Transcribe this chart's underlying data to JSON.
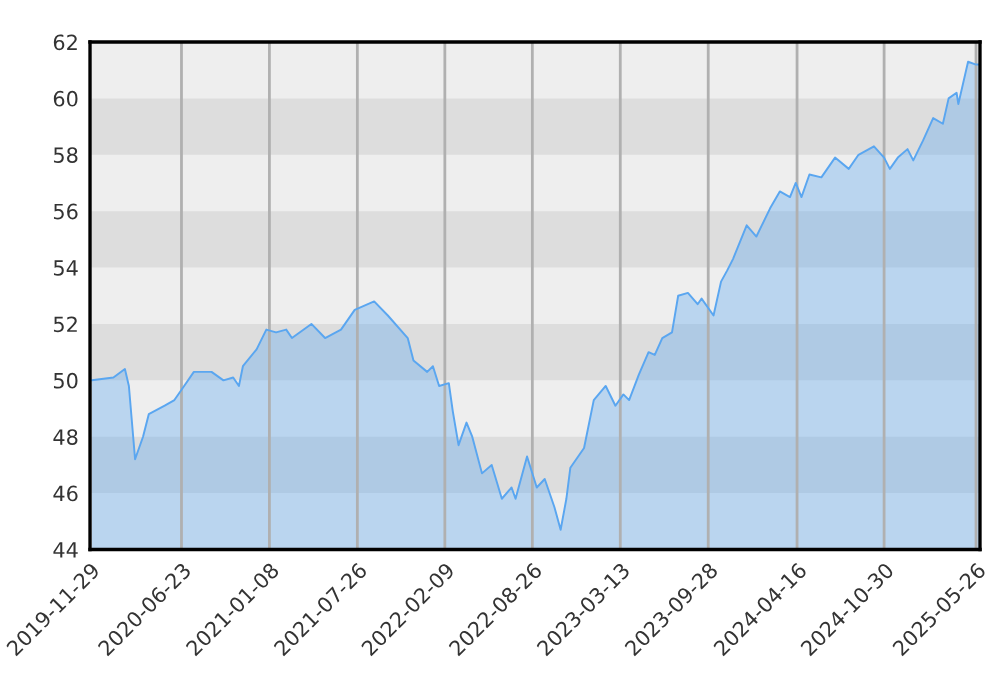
{
  "chart_data": {
    "type": "area",
    "x": [
      "2019-12-03",
      "2020-01-21",
      "2020-02-16",
      "2020-02-25",
      "2020-03-10",
      "2020-03-28",
      "2020-04-10",
      "2020-05-16",
      "2020-06-07",
      "2020-06-29",
      "2020-07-21",
      "2020-08-30",
      "2020-09-26",
      "2020-10-18",
      "2020-10-31",
      "2020-11-09",
      "2020-12-10",
      "2021-01-01",
      "2021-01-23",
      "2021-02-15",
      "2021-02-28",
      "2021-04-13",
      "2021-05-14",
      "2021-06-19",
      "2021-07-20",
      "2021-09-02",
      "2021-10-03",
      "2021-11-17",
      "2021-11-30",
      "2021-12-31",
      "2022-01-13",
      "2022-01-27",
      "2022-02-18",
      "2022-02-27",
      "2022-03-12",
      "2022-03-30",
      "2022-04-12",
      "2022-05-04",
      "2022-05-26",
      "2022-06-18",
      "2022-07-10",
      "2022-07-19",
      "2022-08-14",
      "2022-09-05",
      "2022-09-23",
      "2022-10-15",
      "2022-10-29",
      "2022-11-11",
      "2022-11-20",
      "2022-12-21",
      "2023-01-12",
      "2023-02-08",
      "2023-03-02",
      "2023-03-20",
      "2023-04-02",
      "2023-04-24",
      "2023-05-16",
      "2023-05-30",
      "2023-06-16",
      "2023-07-08",
      "2023-07-22",
      "2023-08-13",
      "2023-09-04",
      "2023-09-13",
      "2023-10-10",
      "2023-10-27",
      "2023-11-10",
      "2023-11-23",
      "2023-12-24",
      "2024-01-15",
      "2024-02-15",
      "2024-03-08",
      "2024-03-31",
      "2024-04-13",
      "2024-04-26",
      "2024-05-14",
      "2024-06-10",
      "2024-07-11",
      "2024-08-11",
      "2024-09-02",
      "2024-10-07",
      "2024-10-30",
      "2024-11-12",
      "2024-11-30",
      "2024-12-22",
      "2025-01-04",
      "2025-01-26",
      "2025-02-18",
      "2025-03-12",
      "2025-03-25",
      "2025-04-12",
      "2025-04-16",
      "2025-05-08",
      "2025-05-26",
      "2025-06-04"
    ],
    "series": [
      {
        "color": "#5aa6f0",
        "values": [
          50.0,
          50.1,
          50.4,
          49.8,
          47.2,
          48.0,
          48.8,
          49.1,
          49.3,
          49.8,
          50.3,
          50.3,
          50.0,
          50.1,
          49.8,
          50.5,
          51.1,
          51.8,
          51.7,
          51.8,
          51.5,
          52.0,
          51.5,
          51.8,
          52.5,
          52.8,
          52.3,
          51.5,
          50.7,
          50.3,
          50.5,
          49.8,
          49.9,
          48.9,
          47.7,
          48.5,
          48.0,
          46.7,
          47.0,
          45.8,
          46.2,
          45.8,
          47.3,
          46.2,
          46.5,
          45.5,
          44.7,
          45.8,
          46.9,
          47.6,
          49.3,
          49.8,
          49.1,
          49.5,
          49.3,
          50.2,
          51.0,
          50.9,
          51.5,
          51.7,
          53.0,
          53.1,
          52.7,
          52.9,
          52.3,
          53.5,
          53.9,
          54.3,
          55.5,
          55.1,
          56.1,
          56.7,
          56.5,
          57.0,
          56.5,
          57.3,
          57.2,
          57.9,
          57.5,
          58.0,
          58.3,
          57.9,
          57.5,
          57.9,
          58.2,
          57.8,
          58.5,
          59.3,
          59.1,
          60.0,
          60.2,
          59.8,
          61.3,
          61.2,
          61.2
        ]
      }
    ],
    "xlim": [
      "2019-11-29",
      "2025-06-04"
    ],
    "xticks": [
      "2019-11-29",
      "2020-06-23",
      "2021-01-08",
      "2021-07-26",
      "2022-02-09",
      "2022-08-26",
      "2023-03-13",
      "2023-09-28",
      "2024-04-16",
      "2024-10-30",
      "2025-05-26"
    ],
    "ylim": [
      44,
      62
    ],
    "yticks": [
      44,
      46,
      48,
      50,
      52,
      54,
      56,
      58,
      60,
      62
    ],
    "grid": "x",
    "bands": [
      {
        "axis": "y",
        "from": 46,
        "to": 48,
        "color": "#dddddd"
      },
      {
        "axis": "y",
        "from": 50,
        "to": 52,
        "color": "#dddddd"
      },
      {
        "axis": "y",
        "from": 54,
        "to": 56,
        "color": "#dddddd"
      },
      {
        "axis": "y",
        "from": 58,
        "to": 60,
        "color": "#dddddd"
      }
    ]
  }
}
